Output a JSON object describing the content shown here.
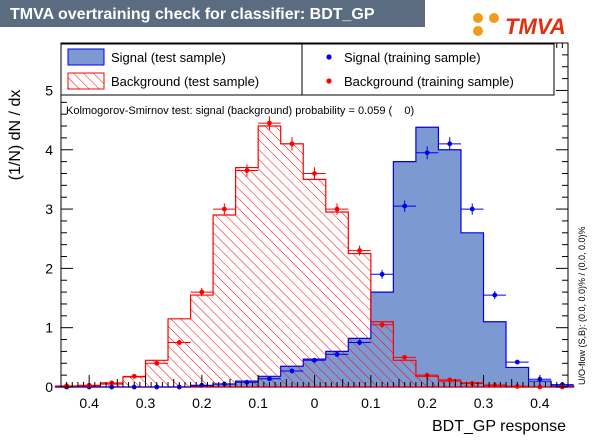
{
  "chart_data": {
    "type": "histogram",
    "title": "TMVA overtraining check for classifier: BDT_GP",
    "logo": "TMVA",
    "xlabel": "BDT_GP response",
    "ylabel": "(1/N) dN / dx",
    "x_axis_reversed": true,
    "xlim": [
      0.45,
      -0.45
    ],
    "ylim": [
      0,
      5.8
    ],
    "grid": false,
    "legend_placement": "top",
    "ks_text": "Kolmogorov-Smirnov test: signal (background) probability = 0.059 (    0)",
    "overflow_text": "U/O-flow (S,B): (0.0, 0.0)% / (0.0, 0.0)%",
    "x_ticks": [
      0.4,
      0.3,
      0.2,
      0.1,
      0,
      0.1,
      0.2,
      0.3,
      0.4
    ],
    "y_ticks": [
      0,
      1,
      2,
      3,
      4,
      5
    ],
    "colors": {
      "signal_fill": "#7d99d1",
      "signal_line": "#0000ee",
      "background_line": "#ff0000",
      "signal_points": "#0000ee",
      "background_points": "#ff0000",
      "title_bar": "#5b6b80"
    },
    "bin_edges": [
      -0.46,
      -0.42,
      -0.38,
      -0.34,
      -0.3,
      -0.26,
      -0.22,
      -0.18,
      -0.14,
      -0.1,
      -0.06,
      -0.02,
      0.02,
      0.06,
      0.1,
      0.14,
      0.18,
      0.22,
      0.26,
      0.3,
      0.34,
      0.38,
      0.42,
      0.46
    ],
    "legend": [
      {
        "label": "Signal (test sample)",
        "style": "fill"
      },
      {
        "label": "Signal (training sample)",
        "style": "marker-blue"
      },
      {
        "label": "Background (test sample)",
        "style": "hatch"
      },
      {
        "label": "Background (training sample)",
        "style": "marker-red"
      }
    ],
    "series": [
      {
        "name": "Signal (test sample)",
        "kind": "filled-histogram",
        "values": [
          0.0,
          0.0,
          0.0,
          0.0,
          0.0,
          0.0,
          0.02,
          0.05,
          0.1,
          0.18,
          0.35,
          0.47,
          0.6,
          0.82,
          1.6,
          3.8,
          4.38,
          4.0,
          2.6,
          1.1,
          0.33,
          0.1,
          0.02
        ]
      },
      {
        "name": "Signal (training sample)",
        "kind": "points",
        "values": [
          0.0,
          0.0,
          0.0,
          0.0,
          0.0,
          0.0,
          0.03,
          0.05,
          0.08,
          0.14,
          0.27,
          0.45,
          0.55,
          0.75,
          1.9,
          3.05,
          3.95,
          4.1,
          3.0,
          1.55,
          0.42,
          0.13,
          0.04
        ]
      },
      {
        "name": "Background (test sample)",
        "kind": "hatched-histogram",
        "values": [
          0.01,
          0.02,
          0.05,
          0.17,
          0.45,
          1.15,
          1.55,
          2.9,
          3.7,
          4.4,
          4.1,
          3.5,
          2.95,
          2.25,
          1.1,
          0.45,
          0.18,
          0.1,
          0.07,
          0.03,
          0.01,
          0.0,
          0.0
        ]
      },
      {
        "name": "Background (training sample)",
        "kind": "points",
        "values": [
          0.02,
          0.03,
          0.07,
          0.18,
          0.4,
          0.75,
          1.6,
          3.0,
          3.65,
          4.45,
          4.1,
          3.6,
          3.0,
          2.3,
          1.05,
          0.5,
          0.2,
          0.12,
          0.06,
          0.03,
          0.01,
          0.0,
          0.0
        ]
      }
    ]
  }
}
